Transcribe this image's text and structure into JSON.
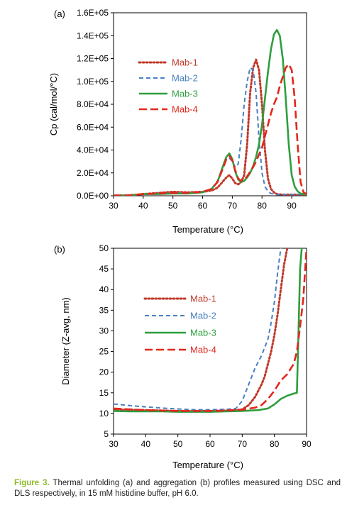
{
  "chart_data": [
    {
      "type": "line",
      "panel_label": "(a)",
      "xlabel": "Temperature (°C)",
      "ylabel": "Cp (cal/mol/°C)",
      "xlim": [
        30,
        95
      ],
      "ylim": [
        0,
        160000
      ],
      "x_ticks": [
        30,
        40,
        50,
        60,
        70,
        80,
        90
      ],
      "y_ticks": [
        0,
        20000,
        40000,
        60000,
        80000,
        100000,
        120000,
        140000,
        160000
      ],
      "y_tick_labels": [
        "0.0E+00",
        "2.0E+04",
        "4.0E+04",
        "6.0E+04",
        "8.0E+04",
        "1.0E+05",
        "1.2E+05",
        "1.4E+05",
        "1.6E+05"
      ],
      "legend_position": "upper-left",
      "series": [
        {
          "name": "Mab-1",
          "color": "#c0392b",
          "style": "dotted",
          "x": [
            30,
            35,
            40,
            45,
            50,
            55,
            60,
            63,
            65,
            67,
            68,
            69,
            70,
            71,
            72,
            73,
            74,
            75,
            76,
            77,
            78,
            79,
            80,
            81,
            82,
            83,
            84,
            85,
            87,
            90,
            95
          ],
          "y": [
            200,
            400,
            1500,
            2500,
            3500,
            3000,
            3500,
            4500,
            7000,
            13000,
            16000,
            18000,
            15000,
            11000,
            10000,
            12000,
            18000,
            45000,
            90000,
            112000,
            119000,
            110000,
            80000,
            40000,
            15000,
            6000,
            3000,
            1500,
            1000,
            1000,
            1000
          ]
        },
        {
          "name": "Mab-2",
          "color": "#4a7fc1",
          "style": "dashed",
          "x": [
            30,
            35,
            40,
            45,
            50,
            55,
            60,
            63,
            65,
            67,
            68,
            69,
            70,
            71,
            72,
            73,
            74,
            75,
            76,
            77,
            78,
            79,
            80,
            81,
            82,
            83,
            85,
            88,
            90,
            95
          ],
          "y": [
            200,
            400,
            1500,
            2000,
            2500,
            2500,
            3500,
            6000,
            13000,
            26000,
            32000,
            33000,
            30000,
            25000,
            28000,
            50000,
            80000,
            100000,
            112000,
            110000,
            90000,
            50000,
            20000,
            8000,
            4000,
            2000,
            1000,
            1000,
            1000,
            1000
          ]
        },
        {
          "name": "Mab-3",
          "color": "#2e9e3e",
          "style": "solid",
          "x": [
            30,
            35,
            40,
            45,
            50,
            55,
            60,
            63,
            65,
            67,
            68,
            69,
            70,
            71,
            72,
            73,
            74,
            75,
            76,
            77,
            78,
            79,
            80,
            81,
            82,
            83,
            84,
            85,
            86,
            87,
            88,
            89,
            90,
            91,
            92,
            93,
            95
          ],
          "y": [
            200,
            400,
            1500,
            1500,
            2000,
            2000,
            3000,
            6000,
            12000,
            27000,
            34000,
            37000,
            32000,
            21000,
            14000,
            12000,
            13000,
            16000,
            20000,
            26000,
            34000,
            45000,
            62000,
            85000,
            108000,
            128000,
            141000,
            145000,
            140000,
            120000,
            85000,
            45000,
            18000,
            8000,
            4000,
            2000,
            1000
          ]
        },
        {
          "name": "Mab-4",
          "color": "#e3271c",
          "style": "longdash",
          "x": [
            30,
            35,
            40,
            45,
            50,
            55,
            60,
            63,
            65,
            67,
            68,
            69,
            70,
            71,
            72,
            73,
            74,
            75,
            76,
            77,
            78,
            79,
            80,
            81,
            82,
            83,
            84,
            85,
            86,
            87,
            88,
            89,
            90,
            91,
            92,
            93,
            94,
            95
          ],
          "y": [
            200,
            400,
            1500,
            2000,
            2500,
            2500,
            3500,
            6000,
            12000,
            25000,
            32000,
            35000,
            31000,
            22000,
            15000,
            13000,
            14000,
            17000,
            21000,
            25000,
            30000,
            36000,
            42000,
            52000,
            62000,
            72000,
            80000,
            86000,
            96000,
            104000,
            112000,
            115000,
            110000,
            85000,
            45000,
            12000,
            3000,
            1500
          ]
        }
      ]
    },
    {
      "type": "line",
      "panel_label": "(b)",
      "xlabel": "Temperature (°C)",
      "ylabel": "Diameter (Z-avg, nm)",
      "xlim": [
        30,
        90
      ],
      "ylim": [
        5,
        50
      ],
      "x_ticks": [
        30,
        40,
        50,
        60,
        70,
        80,
        90
      ],
      "y_ticks": [
        5,
        10,
        15,
        20,
        25,
        30,
        35,
        40,
        45,
        50
      ],
      "legend_position": "center-left",
      "series": [
        {
          "name": "Mab-1",
          "color": "#c0392b",
          "style": "dotted",
          "x": [
            30,
            35,
            40,
            45,
            50,
            55,
            60,
            65,
            68,
            70,
            72,
            74,
            76,
            77,
            78,
            79,
            80,
            81,
            82,
            83,
            84
          ],
          "y": [
            11,
            10.9,
            10.8,
            10.7,
            10.6,
            10.6,
            10.6,
            10.7,
            10.8,
            11,
            12,
            14,
            17,
            19,
            22,
            25,
            29,
            34,
            40,
            46,
            50
          ]
        },
        {
          "name": "Mab-2",
          "color": "#4a7fc1",
          "style": "dashed",
          "x": [
            30,
            35,
            40,
            45,
            50,
            55,
            60,
            65,
            68,
            70,
            72,
            74,
            76,
            78,
            79,
            80,
            81,
            82
          ],
          "y": [
            12.3,
            11.9,
            11.6,
            11.3,
            11.1,
            10.9,
            10.9,
            11,
            11.2,
            13,
            17,
            21,
            24,
            28,
            32,
            37,
            44,
            50
          ]
        },
        {
          "name": "Mab-3",
          "color": "#2e9e3e",
          "style": "solid",
          "x": [
            30,
            35,
            40,
            45,
            50,
            55,
            60,
            65,
            70,
            75,
            78,
            80,
            82,
            84,
            86,
            87,
            87.5,
            88,
            88.5
          ],
          "y": [
            10.6,
            10.5,
            10.5,
            10.5,
            10.4,
            10.4,
            10.4,
            10.5,
            10.6,
            10.8,
            11.2,
            12.2,
            13.5,
            14.3,
            14.8,
            15,
            30,
            45,
            50
          ]
        },
        {
          "name": "Mab-4",
          "color": "#e3271c",
          "style": "longdash",
          "x": [
            30,
            35,
            40,
            45,
            50,
            55,
            60,
            65,
            70,
            74,
            76,
            78,
            80,
            82,
            84,
            86,
            87,
            88,
            89,
            89.5,
            90
          ],
          "y": [
            11.2,
            11,
            10.8,
            10.7,
            10.6,
            10.6,
            10.6,
            10.7,
            10.9,
            11.4,
            12,
            13.5,
            15.5,
            18,
            19.5,
            22,
            25,
            31,
            38,
            44,
            50
          ]
        }
      ]
    }
  ],
  "caption": {
    "lead": "Figure 3.",
    "text": " Thermal unfolding (a) and aggregation (b) profiles measured using DSC and DLS respectively, in 15 mM histidine buffer, pH 6.0."
  }
}
